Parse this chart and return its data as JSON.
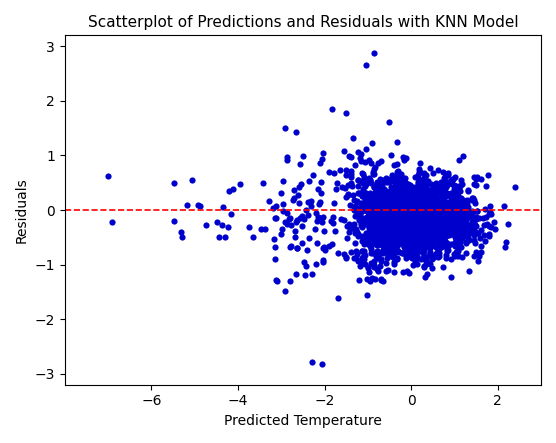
{
  "title": "Scatterplot of Predictions and Residuals with KNN Model",
  "xlabel": "Predicted Temperature",
  "ylabel": "Residuals",
  "xlim": [
    -8,
    3
  ],
  "ylim": [
    -3.2,
    3.2
  ],
  "xticks": [
    -6,
    -4,
    -2,
    0,
    2
  ],
  "yticks": [
    -3,
    -2,
    -1,
    0,
    1,
    2,
    3
  ],
  "hline_y": 0,
  "hline_color": "red",
  "hline_style": "--",
  "dot_color": "#0000cc",
  "dot_size": 20,
  "dot_alpha": 1.0,
  "background_color": "#ffffff",
  "title_fontsize": 11,
  "label_fontsize": 10,
  "random_seed": 42,
  "n_main": 2500
}
